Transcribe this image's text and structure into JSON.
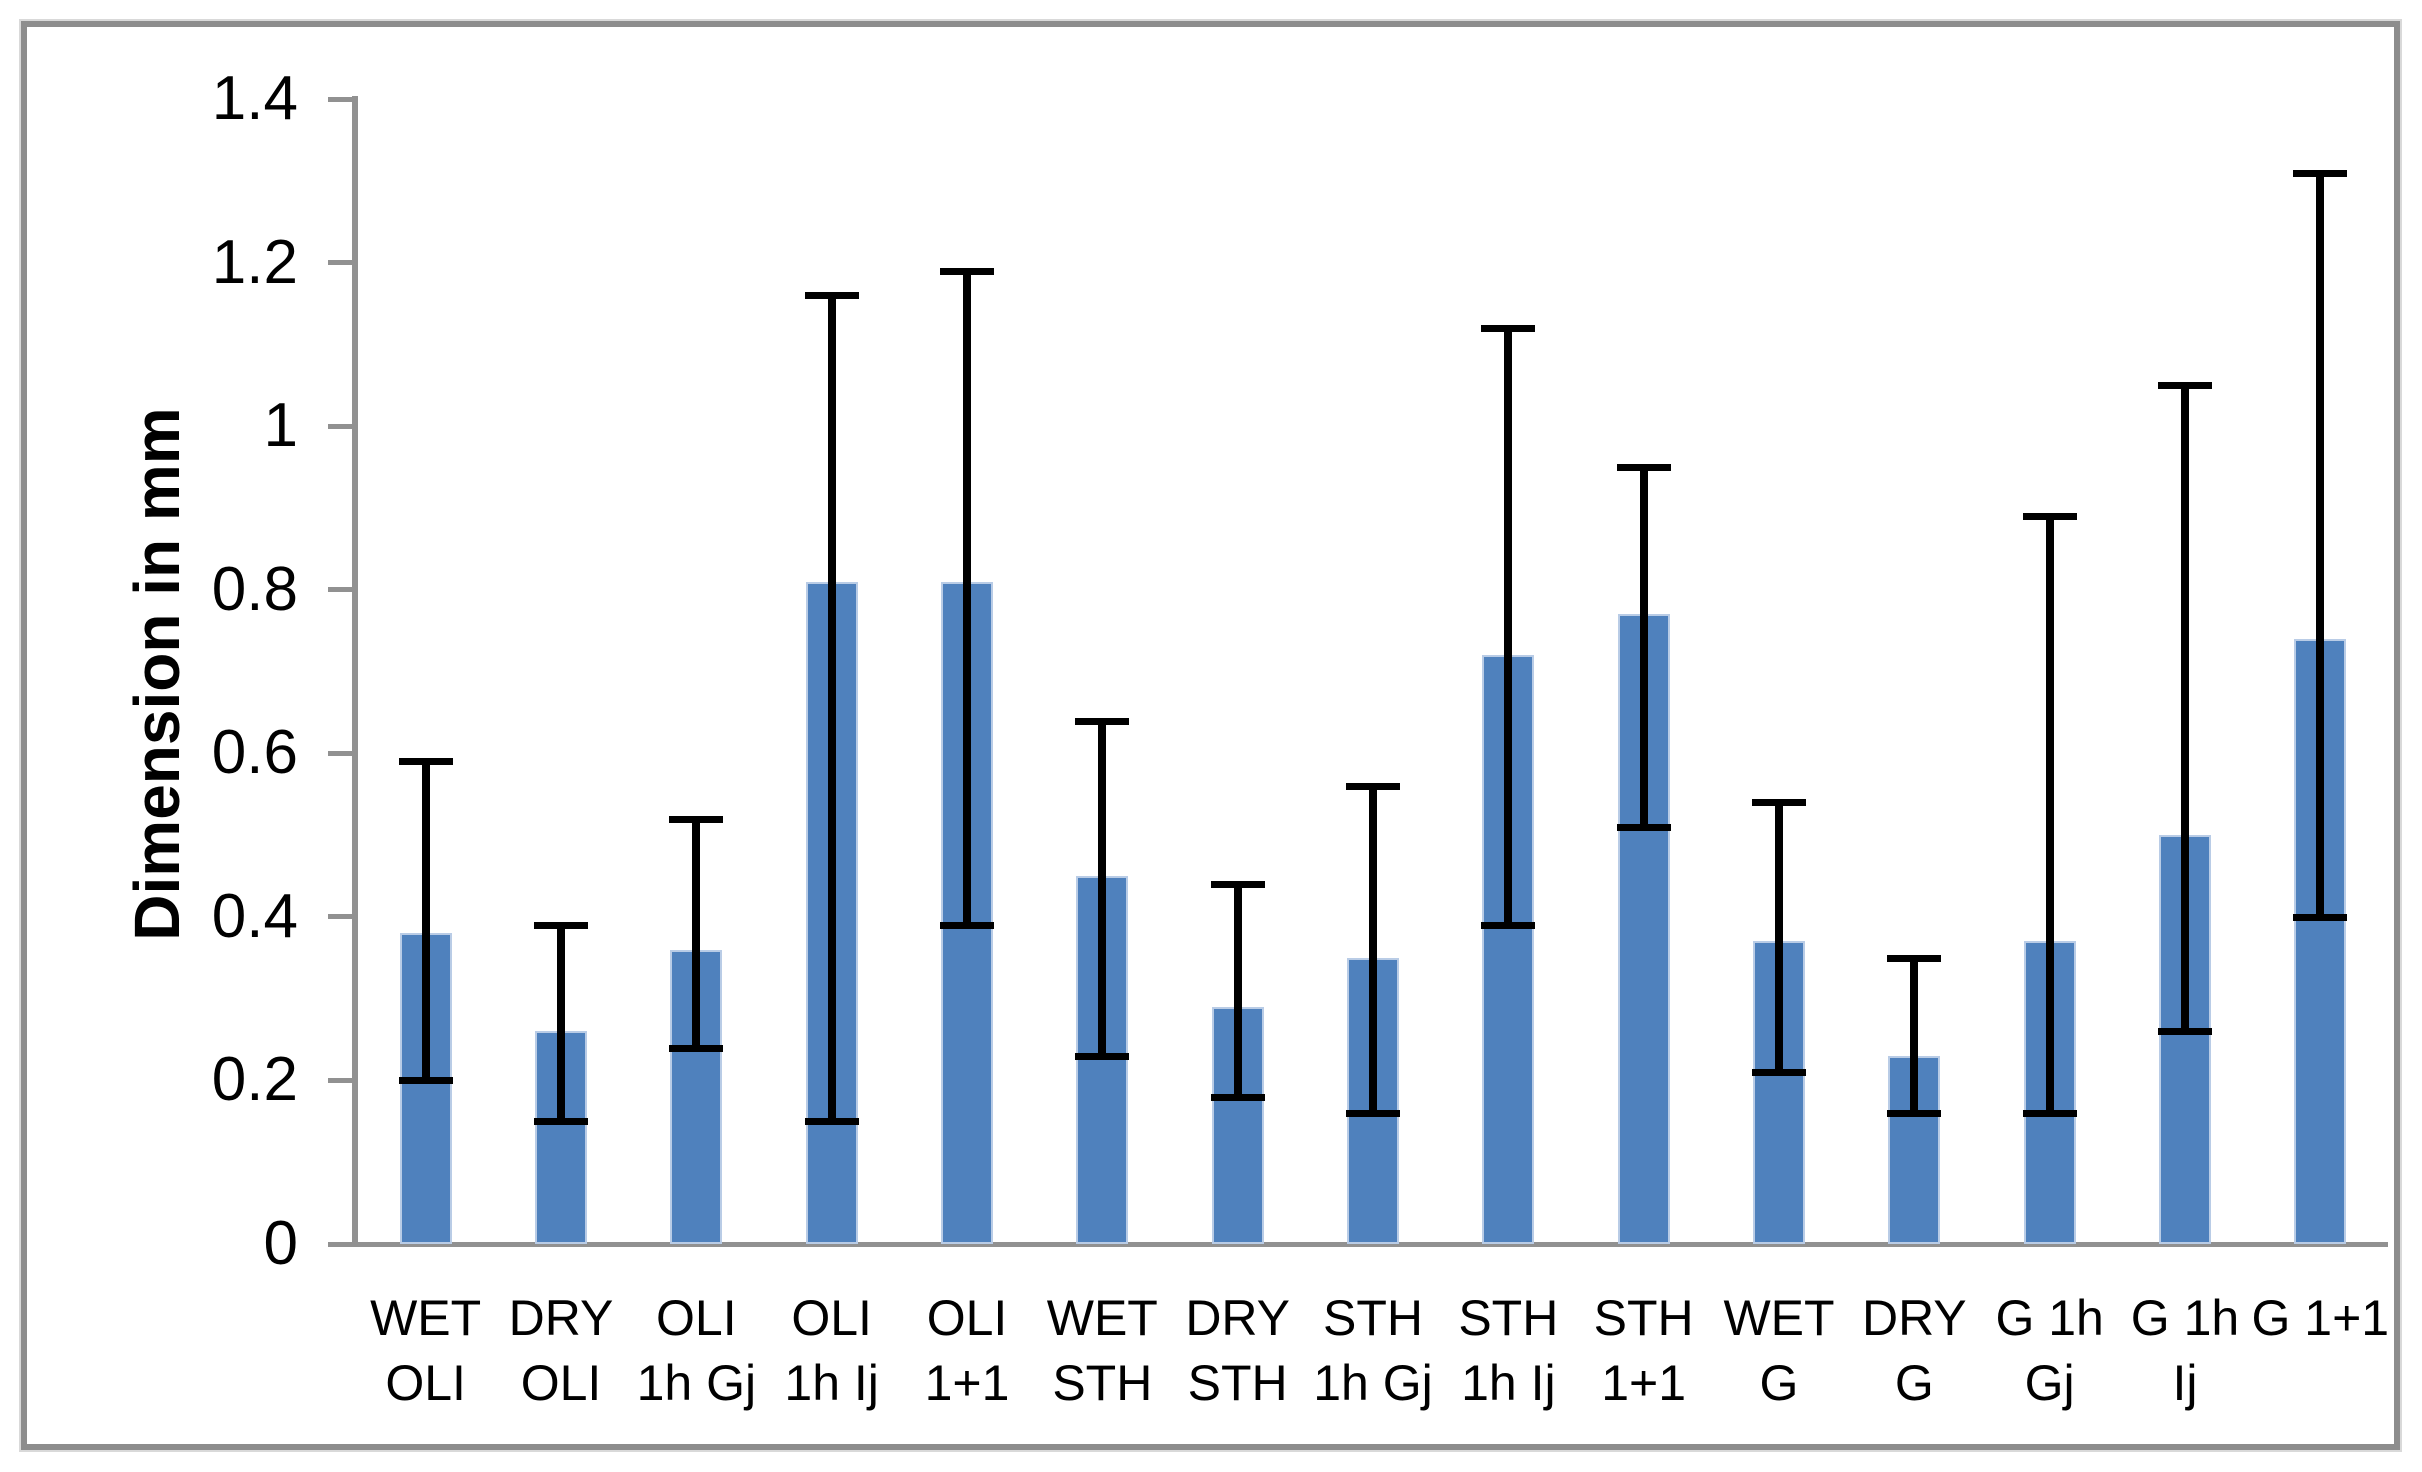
{
  "figure": {
    "background_color": "#ffffff",
    "border_color": "#8d8d8d"
  },
  "chart_data": {
    "type": "bar",
    "title": "",
    "xlabel": "",
    "ylabel": "Dimension in mm",
    "ylim": [
      0,
      1.4
    ],
    "ytick_values": [
      0,
      0.2,
      0.4,
      0.6,
      0.8,
      1.0,
      1.2,
      1.4
    ],
    "ytick_labels": [
      "0",
      "0.2",
      "0.4",
      "0.6",
      "0.8",
      "1",
      "1.2",
      "1.4"
    ],
    "grid": false,
    "legend": "none",
    "bar_color": "#4f81bd",
    "bar_edge_color": "#b9cce6",
    "error_bar_color": "#000000",
    "axis_color": "#919191",
    "categories": [
      "WET OLI",
      "DRY OLI",
      "OLI 1h Gj",
      "OLI 1h Ij",
      "OLI 1+1",
      "WET STH",
      "DRY STH",
      "STH 1h Gj",
      "STH 1h Ij",
      "STH 1+1",
      "WET G",
      "DRY G",
      "G 1h Gj",
      "G 1h Ij",
      "G 1+1"
    ],
    "category_label_lines": [
      [
        "WET",
        "OLI"
      ],
      [
        "DRY",
        "OLI"
      ],
      [
        "OLI",
        "1h Gj"
      ],
      [
        "OLI",
        "1h Ij"
      ],
      [
        "OLI",
        "1+1"
      ],
      [
        "WET",
        "STH"
      ],
      [
        "DRY",
        "STH"
      ],
      [
        "STH",
        "1h Gj"
      ],
      [
        "STH",
        "1h Ij"
      ],
      [
        "STH",
        "1+1"
      ],
      [
        "WET",
        "G"
      ],
      [
        "DRY",
        "G"
      ],
      [
        "G 1h",
        "Gj"
      ],
      [
        "G 1h",
        "Ij"
      ],
      [
        "G 1+1",
        ""
      ]
    ],
    "values": [
      0.38,
      0.26,
      0.36,
      0.81,
      0.81,
      0.45,
      0.29,
      0.35,
      0.72,
      0.77,
      0.37,
      0.23,
      0.37,
      0.5,
      0.74
    ],
    "error_low": [
      0.2,
      0.15,
      0.24,
      0.15,
      0.39,
      0.23,
      0.18,
      0.16,
      0.39,
      0.51,
      0.21,
      0.16,
      0.16,
      0.26,
      0.4
    ],
    "error_high": [
      0.59,
      0.39,
      0.52,
      1.16,
      1.19,
      0.64,
      0.44,
      0.56,
      1.12,
      0.95,
      0.54,
      0.35,
      0.89,
      1.05,
      1.31
    ]
  }
}
